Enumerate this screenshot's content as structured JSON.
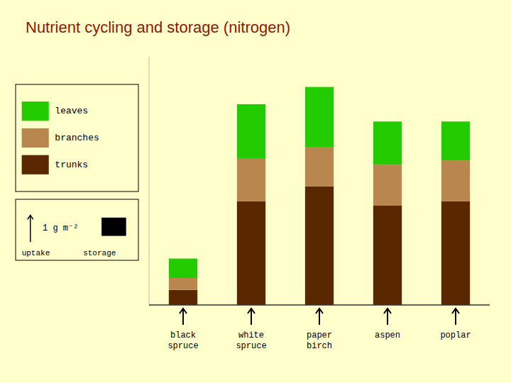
{
  "chart_data": {
    "type": "bar",
    "stacked": true,
    "title": "Nutrient cycling and storage (nitrogen)",
    "categories": [
      "black\nspruce",
      "white\nspruce",
      "paper\nbirch",
      "aspen",
      "poplar"
    ],
    "series": [
      {
        "name": "trunks",
        "color": "#5A2800",
        "values": [
          0.7,
          4.8,
          5.5,
          4.6,
          4.8
        ]
      },
      {
        "name": "branches",
        "color": "#B8864E",
        "values": [
          0.55,
          2.0,
          1.8,
          1.9,
          1.9
        ]
      },
      {
        "name": "leaves",
        "color": "#22CC00",
        "values": [
          0.9,
          2.5,
          2.8,
          2.0,
          1.8
        ]
      }
    ],
    "ylim": [
      0,
      11.5
    ],
    "grid": false,
    "legend": "upper left",
    "tick_labels": "x",
    "annotations": [
      "1 g m⁻²",
      "uptake",
      "storage"
    ]
  }
}
